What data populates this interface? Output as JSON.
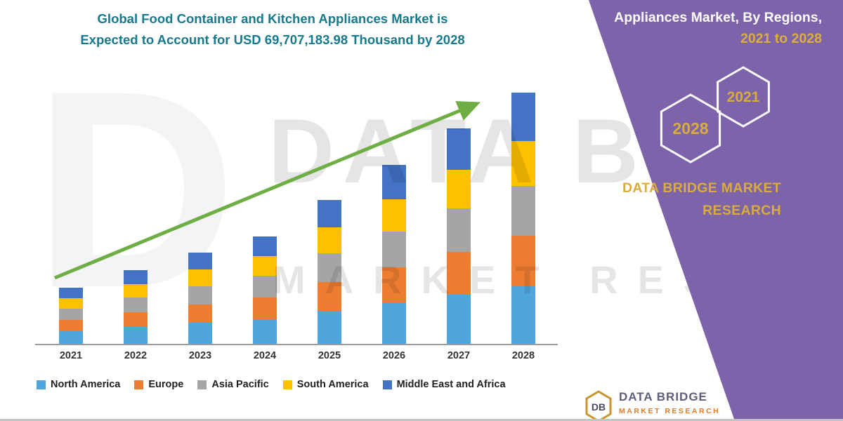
{
  "title": {
    "line1": "Global Food Container and Kitchen Appliances Market is",
    "line2": "Expected to Account for USD 69,707,183.98 Thousand by 2028"
  },
  "watermark": {
    "big_letter": "D",
    "line1": "DATA BRIDGE",
    "line2": "MARKET RESEARCH"
  },
  "side_panel": {
    "heading_line1": "Appliances Market, By Regions,",
    "heading_line2": "2021 to 2028",
    "hex_left": "2028",
    "hex_right": "2021",
    "brand_line1": "DATA BRIDGE MARKET",
    "brand_line2": "RESEARCH"
  },
  "footer_logo": {
    "mark": "DB",
    "brand": "DATA BRIDGE",
    "sub": "MARKET RESEARCH"
  },
  "colors": {
    "title_teal": "#17798C",
    "panel_purple": "#7C63AA",
    "gold": "#D9AC3C",
    "arrow_green": "#6FAE44",
    "axis_gray": "#9B9B9B"
  },
  "chart_data": {
    "type": "bar",
    "stacked": true,
    "title": "Global Food Container and Kitchen Appliances Market is Expected to Account for USD 69,707,183.98 Thousand by 2028",
    "xlabel": "",
    "ylabel": "",
    "values_unit": "USD Thousand (millions), estimated from bar heights; no y-axis shown",
    "total_2028_usd_thousand": 69707183.98,
    "ylim": [
      0,
      70
    ],
    "gridlines": false,
    "legend_position": "bottom",
    "categories": [
      "2021",
      "2022",
      "2023",
      "2024",
      "2025",
      "2026",
      "2027",
      "2028"
    ],
    "series": [
      {
        "name": "North America",
        "color": "#4FA6DB",
        "values": [
          3.6,
          4.7,
          5.8,
          6.9,
          9.2,
          11.4,
          13.7,
          16.0
        ]
      },
      {
        "name": "Europe",
        "color": "#ED7D31",
        "values": [
          3.1,
          4.1,
          5.1,
          6.0,
          8.0,
          9.9,
          11.9,
          13.9
        ]
      },
      {
        "name": "Asia Pacific",
        "color": "#A5A5A5",
        "values": [
          3.1,
          4.1,
          5.1,
          6.0,
          8.0,
          9.9,
          11.9,
          13.9
        ]
      },
      {
        "name": "South America",
        "color": "#FFC000",
        "values": [
          2.8,
          3.7,
          4.6,
          5.4,
          7.2,
          8.9,
          10.7,
          12.5
        ]
      },
      {
        "name": "Middle East and Africa",
        "color": "#4472C4",
        "values": [
          3.0,
          3.9,
          4.8,
          5.6,
          7.6,
          9.5,
          11.5,
          13.4
        ]
      }
    ],
    "totals_estimated": [
      15.6,
      20.5,
      25.4,
      29.9,
      40.0,
      49.6,
      59.7,
      69.7
    ],
    "annotations": [
      {
        "type": "trend-arrow",
        "direction": "up-right",
        "color": "#6FAE44"
      }
    ]
  }
}
